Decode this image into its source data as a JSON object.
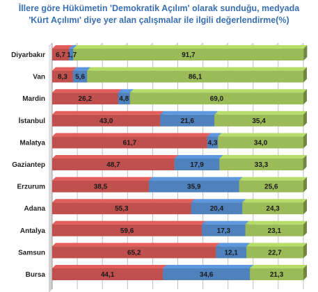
{
  "chart_data": {
    "type": "bar",
    "stacked": true,
    "orientation": "horizontal",
    "title_line1": "İllere göre Hükümetin 'Demokratik Açılım' olarak sunduğu, medyada",
    "title_line2": "'Kürt Açılımı' diye yer alan çalışmalar ile ilgili değerlendirme(%)",
    "categories": [
      "Diyarbakır",
      "Van",
      "Mardin",
      "İstanbul",
      "Malatya",
      "Gaziantep",
      "Erzurum",
      "Adana",
      "Antalya",
      "Samsun",
      "Bursa"
    ],
    "series": [
      {
        "color": "#c0504d",
        "values": [
          6.7,
          8.3,
          26.2,
          43.0,
          61.7,
          48.7,
          38.5,
          55.3,
          59.6,
          65.2,
          44.1
        ]
      },
      {
        "color": "#4f81bd",
        "values": [
          1.7,
          5.6,
          4.8,
          21.6,
          4.3,
          17.9,
          35.9,
          20.4,
          17.3,
          12.1,
          34.6
        ]
      },
      {
        "color": "#9bbb59",
        "values": [
          91.7,
          86.1,
          69.0,
          35.4,
          34.0,
          33.3,
          25.6,
          24.3,
          23.1,
          22.7,
          21.3
        ]
      }
    ],
    "labels": [
      [
        "6,7",
        "8,3",
        "26,2",
        "43,0",
        "61,7",
        "48,7",
        "38,5",
        "55,3",
        "59,6",
        "65,2",
        "44,1"
      ],
      [
        "1,7",
        "5,6",
        "4,8",
        "21,6",
        "4,3",
        "17,9",
        "35,9",
        "20,4",
        "17,3",
        "12,1",
        "34,6"
      ],
      [
        "91,7",
        "86,1",
        "69,0",
        "35,4",
        "34,0",
        "33,3",
        "25,6",
        "24,3",
        "23,1",
        "22,7",
        "21,3"
      ]
    ],
    "xlim": [
      0,
      100
    ],
    "grid": true
  }
}
